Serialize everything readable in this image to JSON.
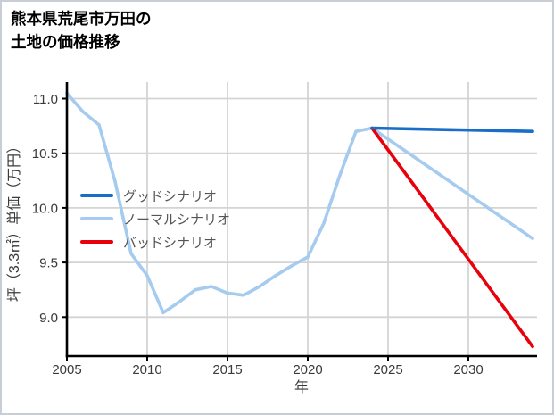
{
  "title": {
    "line1": "熊本県荒尾市万田の",
    "line2": "土地の価格推移"
  },
  "axes": {
    "x_label": "年",
    "y_label": "坪（3.3㎡）単価（万円）",
    "x_tick_labels": [
      "2005",
      "2010",
      "2015",
      "2020",
      "2025",
      "2030"
    ],
    "y_tick_labels": [
      "11.0",
      "10.5",
      "10.0",
      "9.5",
      "9.0"
    ]
  },
  "legend": {
    "items": [
      {
        "key": "good-scenario",
        "label": "グッドシナリオ",
        "color": "#1b6ec8"
      },
      {
        "key": "normal-scenario",
        "label": "ノーマルシナリオ",
        "color": "#a5cbef"
      },
      {
        "key": "bad-scenario",
        "label": "バッドシナリオ",
        "color": "#e8000b"
      }
    ]
  },
  "colors": {
    "grid": "#d4d4d4",
    "spine": "#000000",
    "tick_text": "#3a3a3a",
    "legend_text": "#555555",
    "background": "#ffffff",
    "frame_border": "#c9cdd6"
  },
  "chart_data": {
    "type": "line",
    "title": "熊本県荒尾市万田の土地の価格推移",
    "xlabel": "年",
    "ylabel": "坪（3.3㎡）単価（万円）",
    "xlim": [
      2005,
      2034.4
    ],
    "ylim": [
      8.64,
      11.15
    ],
    "x_ticks": [
      2005,
      2010,
      2015,
      2020,
      2025,
      2030
    ],
    "y_ticks": [
      11.0,
      10.5,
      10.0,
      9.5,
      9.0
    ],
    "grid": true,
    "legend_position": "center left",
    "series": [
      {
        "key": "good-scenario",
        "name": "グッドシナリオ",
        "color": "#1b6ec8",
        "x": [
          2024,
          2034
        ],
        "values": [
          10.73,
          10.7
        ]
      },
      {
        "key": "normal-scenario",
        "name": "ノーマルシナリオ",
        "color": "#a5cbef",
        "x": [
          2005,
          2006,
          2007,
          2008,
          2009,
          2010,
          2011,
          2012,
          2013,
          2014,
          2015,
          2016,
          2017,
          2018,
          2019,
          2020,
          2021,
          2022,
          2023,
          2024,
          2034
        ],
        "values": [
          11.05,
          10.88,
          10.76,
          10.24,
          9.58,
          9.38,
          9.04,
          9.14,
          9.25,
          9.28,
          9.22,
          9.2,
          9.28,
          9.38,
          9.47,
          9.55,
          9.86,
          10.3,
          10.7,
          10.73,
          9.72
        ]
      },
      {
        "key": "bad-scenario",
        "name": "バッドシナリオ",
        "color": "#e8000b",
        "x": [
          2024,
          2034
        ],
        "values": [
          10.73,
          8.73
        ]
      }
    ]
  }
}
